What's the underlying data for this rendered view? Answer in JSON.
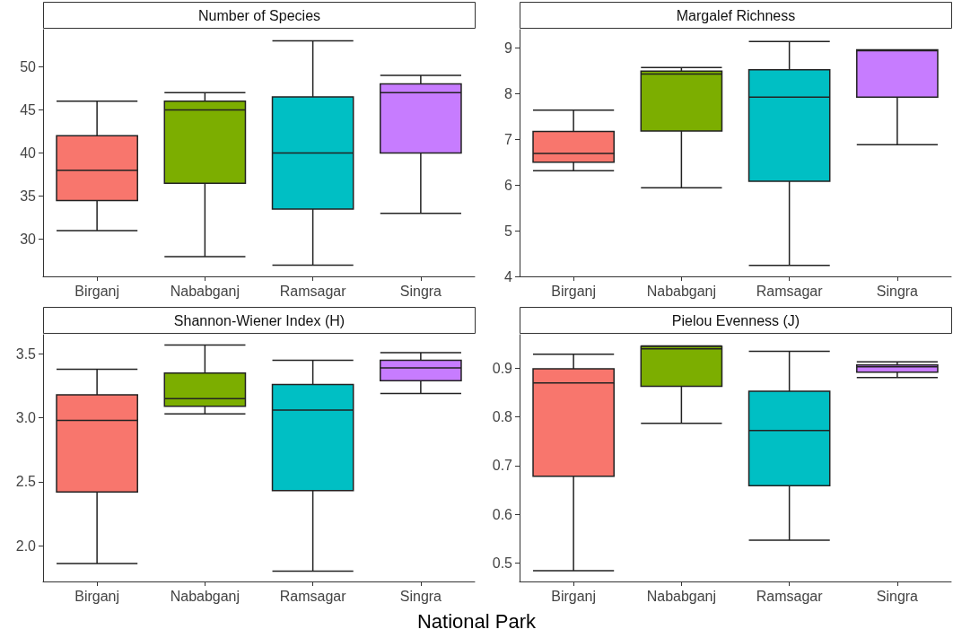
{
  "chart_data": [
    {
      "type": "box",
      "title": "Number of Species",
      "categories": [
        "Birganj",
        "Nababganj",
        "Ramsagar",
        "Singra"
      ],
      "colors": [
        "#f8766d",
        "#7cae00",
        "#00bfc4",
        "#c77cff"
      ],
      "ylim": [
        25.7,
        54.3
      ],
      "yticks": [
        30,
        35,
        40,
        45,
        50
      ],
      "boxes": [
        {
          "low": 31,
          "q1": 34.5,
          "median": 38,
          "q3": 42,
          "high": 46
        },
        {
          "low": 28,
          "q1": 36.5,
          "median": 45,
          "q3": 46,
          "high": 47
        },
        {
          "low": 27,
          "q1": 33.5,
          "median": 40,
          "q3": 46.5,
          "high": 53
        },
        {
          "low": 33,
          "q1": 40,
          "median": 47,
          "q3": 48,
          "high": 49
        }
      ]
    },
    {
      "type": "box",
      "title": "Margalef Richness",
      "categories": [
        "Birganj",
        "Nababganj",
        "Ramsagar",
        "Singra"
      ],
      "colors": [
        "#f8766d",
        "#7cae00",
        "#00bfc4",
        "#c77cff"
      ],
      "ylim": [
        4,
        9.4
      ],
      "yticks": [
        4,
        5,
        6,
        7,
        8,
        9
      ],
      "boxes": [
        {
          "low": 6.31,
          "q1": 6.5,
          "median": 6.69,
          "q3": 7.17,
          "high": 7.64
        },
        {
          "low": 5.94,
          "q1": 7.18,
          "median": 8.43,
          "q3": 8.49,
          "high": 8.57
        },
        {
          "low": 4.24,
          "q1": 6.08,
          "median": 7.92,
          "q3": 8.52,
          "high": 9.14
        },
        {
          "low": 6.88,
          "q1": 7.92,
          "median": 8.94,
          "q3": 8.96,
          "high": 8.96
        }
      ]
    },
    {
      "type": "box",
      "title": "Shannon-Wiener Index (H)",
      "xlabel": "National Park",
      "categories": [
        "Birganj",
        "Nababganj",
        "Ramsagar",
        "Singra"
      ],
      "colors": [
        "#f8766d",
        "#7cae00",
        "#00bfc4",
        "#c77cff"
      ],
      "ylim": [
        1.72,
        3.65
      ],
      "yticks": [
        {
          "value": 2,
          "label": "2.0"
        },
        2.5,
        {
          "value": 3,
          "label": "3.0"
        },
        3.5
      ],
      "boxes": [
        {
          "low": 1.86,
          "q1": 2.42,
          "median": 2.98,
          "q3": 3.18,
          "high": 3.38
        },
        {
          "low": 3.03,
          "q1": 3.09,
          "median": 3.15,
          "q3": 3.35,
          "high": 3.57
        },
        {
          "low": 1.8,
          "q1": 2.43,
          "median": 3.06,
          "q3": 3.26,
          "high": 3.45
        },
        {
          "low": 3.19,
          "q1": 3.29,
          "median": 3.39,
          "q3": 3.45,
          "high": 3.51
        }
      ]
    },
    {
      "type": "box",
      "title": "Pielou Evenness (J)",
      "categories": [
        "Birganj",
        "Nababganj",
        "Ramsagar",
        "Singra"
      ],
      "colors": [
        "#f8766d",
        "#7cae00",
        "#00bfc4",
        "#c77cff"
      ],
      "ylim": [
        0.462,
        0.969
      ],
      "yticks": [
        0.5,
        0.6,
        0.7,
        0.8,
        0.9
      ],
      "boxes": [
        {
          "low": 0.484,
          "q1": 0.678,
          "median": 0.87,
          "q3": 0.899,
          "high": 0.929
        },
        {
          "low": 0.787,
          "q1": 0.863,
          "median": 0.94,
          "q3": 0.945,
          "high": 0.946
        },
        {
          "low": 0.547,
          "q1": 0.659,
          "median": 0.772,
          "q3": 0.853,
          "high": 0.935
        },
        {
          "low": 0.881,
          "q1": 0.892,
          "median": 0.903,
          "q3": 0.907,
          "high": 0.913
        }
      ]
    }
  ]
}
